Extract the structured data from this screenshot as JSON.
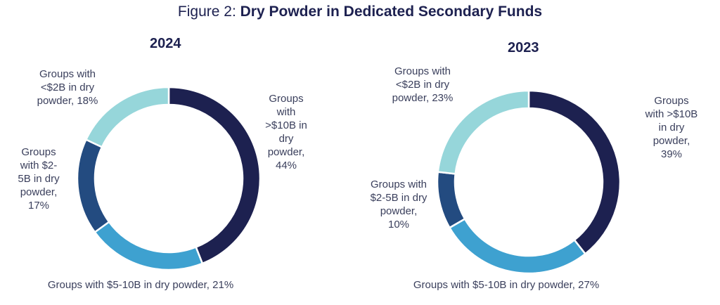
{
  "title": {
    "prefix": "Figure 2: ",
    "main": "Dry Powder in Dedicated Secondary Funds"
  },
  "chart_data": [
    {
      "type": "pie",
      "subtitle": "2024",
      "slices": [
        {
          "name": ">$10B",
          "value": 44,
          "color": "#1d2150",
          "label_lines": [
            "Groups",
            "with",
            ">$10B in",
            "dry",
            "powder,",
            "44%"
          ]
        },
        {
          "name": "$5-10B",
          "value": 21,
          "color": "#3ea1d0",
          "label_lines": [
            "Groups with $5-10B in dry powder, 21%"
          ]
        },
        {
          "name": "$2-5B",
          "value": 17,
          "color": "#234b80",
          "label_lines": [
            "Groups",
            "with $2-",
            "5B in dry",
            "powder,",
            "17%"
          ]
        },
        {
          "name": "<$2B",
          "value": 18,
          "color": "#96d6da",
          "label_lines": [
            "Groups with",
            "<$2B in dry",
            "powder, 18%"
          ]
        }
      ]
    },
    {
      "type": "pie",
      "subtitle": "2023",
      "slices": [
        {
          "name": ">$10B",
          "value": 39,
          "color": "#1d2150",
          "label_lines": [
            "Groups",
            "with >$10B",
            "in dry",
            "powder,",
            "39%"
          ]
        },
        {
          "name": "$5-10B",
          "value": 27,
          "color": "#3ea1d0",
          "label_lines": [
            "Groups with $5-10B in dry powder, 27%"
          ]
        },
        {
          "name": "$2-5B",
          "value": 10,
          "color": "#234b80",
          "label_lines": [
            "Groups with",
            "$2-5B in dry",
            "powder,",
            "10%"
          ]
        },
        {
          "name": "<$2B",
          "value": 23,
          "color": "#96d6da",
          "label_lines": [
            "Groups with",
            "<$2B in dry",
            "powder, 23%"
          ]
        }
      ]
    }
  ]
}
